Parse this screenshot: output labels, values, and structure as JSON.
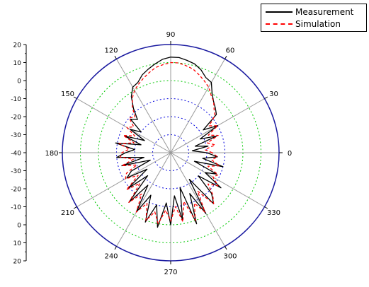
{
  "chart_data": {
    "type": "polar",
    "title": "",
    "angle_unit": "degrees",
    "angle_ticks": [
      0,
      30,
      60,
      90,
      120,
      150,
      180,
      210,
      240,
      270,
      300,
      330
    ],
    "angle_tick_labels": [
      "0",
      "30",
      "60",
      "90",
      "120",
      "150",
      "180",
      "210",
      "240",
      "270",
      "300",
      "330"
    ],
    "radial_range": [
      -40,
      20
    ],
    "radial_axis_ticks_upper": [
      "20",
      "10",
      "0",
      "-10",
      "-20",
      "-30",
      "-40"
    ],
    "radial_axis_ticks_lower": [
      "-30",
      "-20",
      "-10",
      "0",
      "10",
      "20"
    ],
    "radial_grid": [
      {
        "value": 10,
        "color": "#00c800"
      },
      {
        "value": 0,
        "color": "#00c800"
      },
      {
        "value": -10,
        "color": "#0000dd"
      },
      {
        "value": -20,
        "color": "#0000dd"
      },
      {
        "value": -30,
        "color": "#0000dd"
      }
    ],
    "grid": true,
    "legend_position": "top-right",
    "series": [
      {
        "name": "Measurement",
        "color": "#000000",
        "style": "solid",
        "points": [
          [
            0,
            -20
          ],
          [
            5,
            -28
          ],
          [
            10,
            -19
          ],
          [
            15,
            -26
          ],
          [
            20,
            -13
          ],
          [
            25,
            -22
          ],
          [
            30,
            -10
          ],
          [
            35,
            -18
          ],
          [
            40,
            -7
          ],
          [
            45,
            -5
          ],
          [
            50,
            -3
          ],
          [
            55,
            0
          ],
          [
            60,
            5
          ],
          [
            65,
            6
          ],
          [
            70,
            9
          ],
          [
            75,
            11
          ],
          [
            80,
            12
          ],
          [
            85,
            13
          ],
          [
            90,
            13
          ],
          [
            95,
            12
          ],
          [
            100,
            10
          ],
          [
            105,
            8
          ],
          [
            110,
            6
          ],
          [
            115,
            3
          ],
          [
            120,
            2
          ],
          [
            125,
            -2
          ],
          [
            130,
            -8
          ],
          [
            135,
            -14
          ],
          [
            140,
            -11
          ],
          [
            145,
            -20
          ],
          [
            150,
            -14
          ],
          [
            155,
            -24
          ],
          [
            160,
            -13
          ],
          [
            165,
            -23
          ],
          [
            170,
            -9
          ],
          [
            175,
            -20
          ],
          [
            180,
            -15
          ],
          [
            185,
            -10
          ],
          [
            190,
            -25
          ],
          [
            195,
            -12
          ],
          [
            200,
            -28
          ],
          [
            205,
            -16
          ],
          [
            210,
            -12
          ],
          [
            215,
            -24
          ],
          [
            220,
            -9
          ],
          [
            225,
            -22
          ],
          [
            230,
            -4
          ],
          [
            235,
            -18
          ],
          [
            240,
            -2
          ],
          [
            245,
            -14
          ],
          [
            250,
            1
          ],
          [
            255,
            -10
          ],
          [
            260,
            2
          ],
          [
            265,
            -12
          ],
          [
            270,
            0
          ],
          [
            275,
            -16
          ],
          [
            280,
            -2
          ],
          [
            285,
            -20
          ],
          [
            290,
            2
          ],
          [
            295,
            -15
          ],
          [
            300,
            -1
          ],
          [
            305,
            -22
          ],
          [
            310,
            -3
          ],
          [
            315,
            -8
          ],
          [
            320,
            -20
          ],
          [
            325,
            -6
          ],
          [
            330,
            -18
          ],
          [
            335,
            -12
          ],
          [
            340,
            -26
          ],
          [
            345,
            -10
          ],
          [
            350,
            -22
          ],
          [
            355,
            -14
          ],
          [
            360,
            -20
          ]
        ]
      },
      {
        "name": "Simulation",
        "color": "#ff0000",
        "style": "dashed",
        "points": [
          [
            0,
            -17
          ],
          [
            5,
            -21
          ],
          [
            10,
            -15
          ],
          [
            15,
            -19
          ],
          [
            20,
            -12
          ],
          [
            25,
            -17
          ],
          [
            30,
            -10
          ],
          [
            35,
            -14
          ],
          [
            40,
            -8
          ],
          [
            45,
            -6
          ],
          [
            50,
            -3
          ],
          [
            55,
            -1
          ],
          [
            60,
            2
          ],
          [
            65,
            4
          ],
          [
            70,
            6
          ],
          [
            75,
            8
          ],
          [
            80,
            9
          ],
          [
            85,
            10
          ],
          [
            90,
            10
          ],
          [
            95,
            9
          ],
          [
            100,
            8
          ],
          [
            105,
            6
          ],
          [
            110,
            4
          ],
          [
            115,
            2
          ],
          [
            120,
            0
          ],
          [
            125,
            -3
          ],
          [
            130,
            -7
          ],
          [
            135,
            -12
          ],
          [
            140,
            -10
          ],
          [
            145,
            -15
          ],
          [
            150,
            -12
          ],
          [
            155,
            -18
          ],
          [
            160,
            -12
          ],
          [
            165,
            -19
          ],
          [
            170,
            -11
          ],
          [
            175,
            -17
          ],
          [
            180,
            -13
          ],
          [
            185,
            -12
          ],
          [
            190,
            -19
          ],
          [
            195,
            -12
          ],
          [
            200,
            -20
          ],
          [
            205,
            -13
          ],
          [
            210,
            -11
          ],
          [
            215,
            -18
          ],
          [
            220,
            -8
          ],
          [
            225,
            -16
          ],
          [
            230,
            -4
          ],
          [
            235,
            -12
          ],
          [
            240,
            -2
          ],
          [
            245,
            -9
          ],
          [
            250,
            0
          ],
          [
            255,
            -6
          ],
          [
            260,
            0
          ],
          [
            265,
            -8
          ],
          [
            270,
            -2
          ],
          [
            275,
            -10
          ],
          [
            280,
            -1
          ],
          [
            285,
            -12
          ],
          [
            290,
            0
          ],
          [
            295,
            -9
          ],
          [
            300,
            -2
          ],
          [
            305,
            -14
          ],
          [
            310,
            -3
          ],
          [
            315,
            -7
          ],
          [
            320,
            -13
          ],
          [
            325,
            -8
          ],
          [
            330,
            -13
          ],
          [
            335,
            -11
          ],
          [
            340,
            -18
          ],
          [
            345,
            -12
          ],
          [
            350,
            -17
          ],
          [
            355,
            -14
          ],
          [
            360,
            -17
          ]
        ]
      }
    ]
  },
  "legend": {
    "items": [
      {
        "label": "Measurement",
        "color": "#000000",
        "style": "solid"
      },
      {
        "label": "Simulation",
        "color": "#ff0000",
        "style": "dashed"
      }
    ]
  }
}
